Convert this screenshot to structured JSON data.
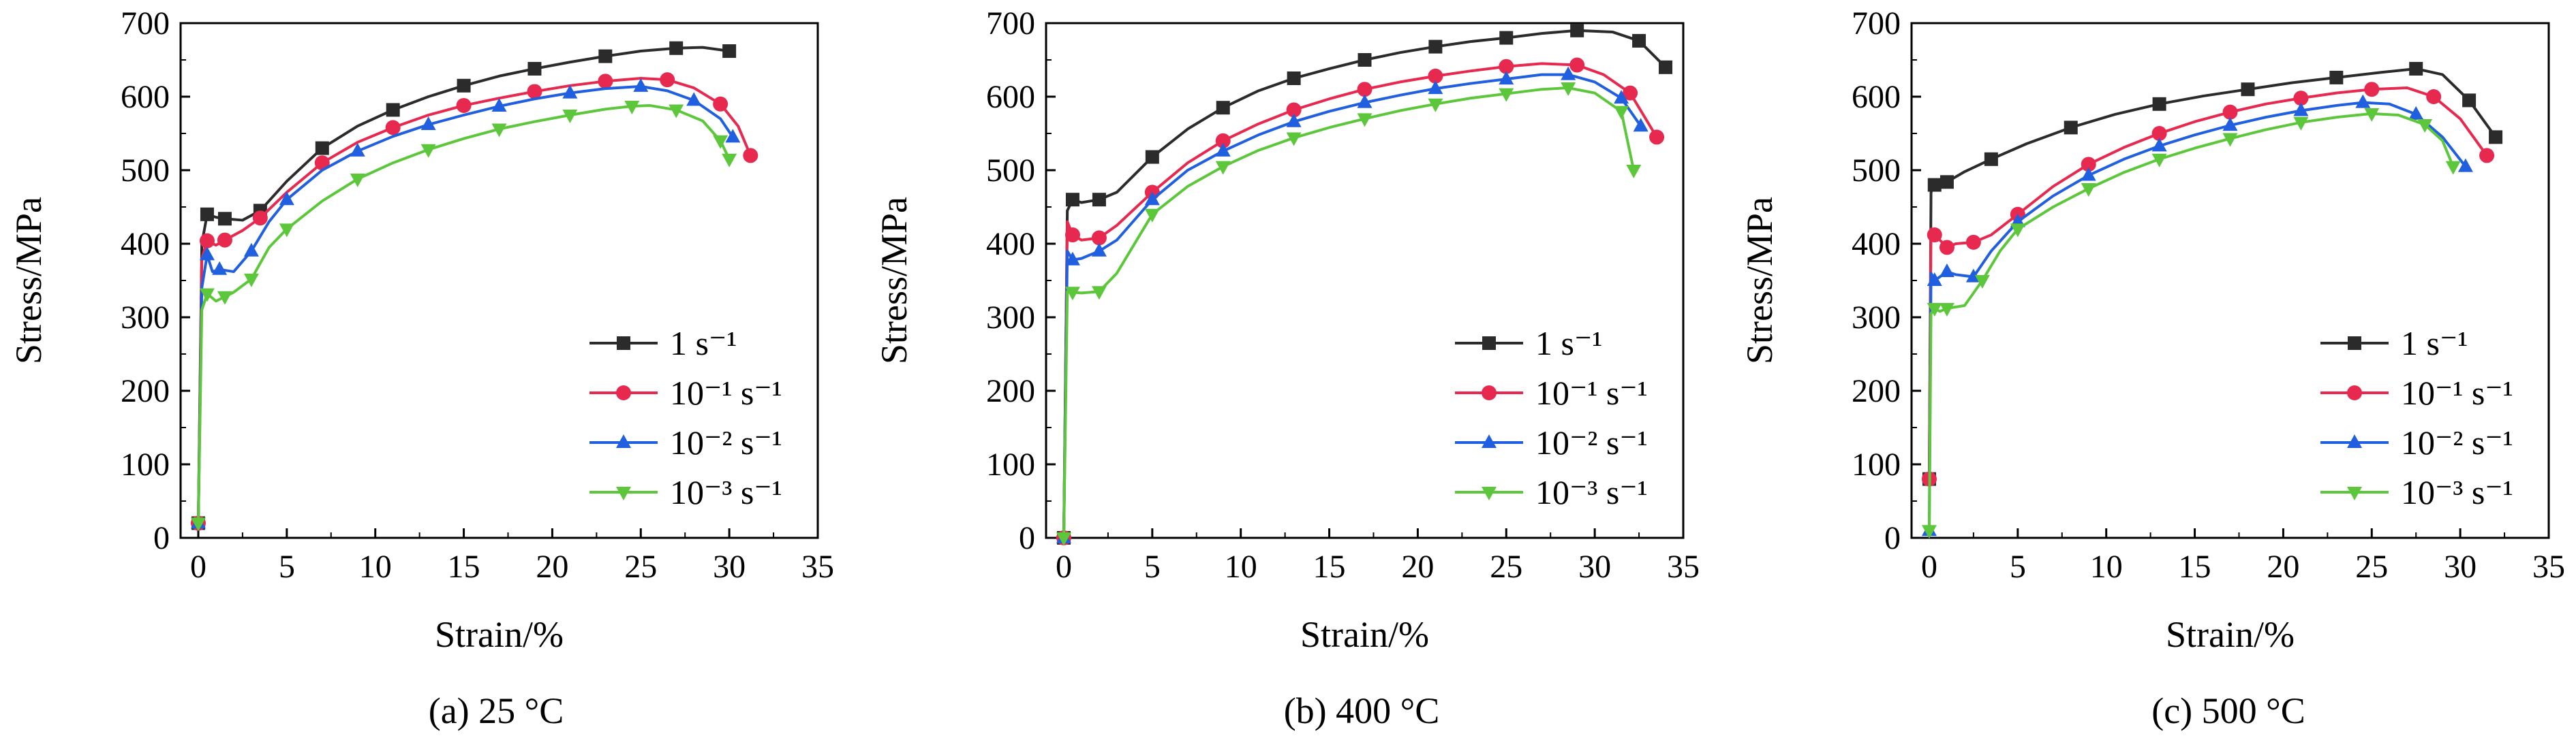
{
  "chart_data": [
    {
      "type": "line",
      "caption": "(a) 25 °C",
      "xlabel": "Strain/%",
      "ylabel": "Stress/MPa",
      "xlim": [
        -1,
        35
      ],
      "ylim": [
        0,
        700
      ],
      "xticks": [
        0,
        5,
        10,
        15,
        20,
        25,
        30,
        35
      ],
      "yticks": [
        0,
        100,
        200,
        300,
        400,
        500,
        600,
        700
      ],
      "legend_position": "bottom-right",
      "series": [
        {
          "name": "1 s⁻¹",
          "color": "#2b2b2b",
          "marker": "square",
          "x": [
            0,
            0.2,
            0.5,
            1.0,
            1.5,
            2.5,
            3.5,
            5.0,
            7.0,
            9.0,
            11.0,
            13.0,
            15.0,
            17.0,
            19.0,
            21.0,
            23.0,
            25.0,
            27.0,
            28.5,
            30.0
          ],
          "y": [
            20,
            400,
            440,
            436,
            434,
            432,
            445,
            485,
            530,
            560,
            582,
            600,
            615,
            628,
            638,
            647,
            655,
            662,
            666,
            667,
            662
          ]
        },
        {
          "name": "10⁻¹ s⁻¹",
          "color": "#e8294f",
          "marker": "circle",
          "x": [
            0,
            0.2,
            0.5,
            1.0,
            1.5,
            2.5,
            3.5,
            5.0,
            7.0,
            9.0,
            11.0,
            13.0,
            15.0,
            17.0,
            19.0,
            21.0,
            23.0,
            25.0,
            26.5,
            28.0,
            29.5,
            30.5,
            31.2
          ],
          "y": [
            20,
            380,
            404,
            398,
            405,
            418,
            435,
            470,
            510,
            538,
            558,
            575,
            588,
            598,
            607,
            615,
            621,
            625,
            623,
            612,
            590,
            560,
            520
          ]
        },
        {
          "name": "10⁻² s⁻¹",
          "color": "#1f5fe0",
          "marker": "triangle-up",
          "x": [
            0,
            0.2,
            0.5,
            0.8,
            1.2,
            2.0,
            3.0,
            4.0,
            5.0,
            7.0,
            9.0,
            11.0,
            13.0,
            15.0,
            17.0,
            19.0,
            21.0,
            23.0,
            25.0,
            26.5,
            28.0,
            29.5,
            30.2
          ],
          "y": [
            20,
            340,
            385,
            362,
            365,
            362,
            390,
            430,
            460,
            500,
            526,
            546,
            562,
            575,
            587,
            597,
            605,
            611,
            614,
            608,
            595,
            570,
            545
          ]
        },
        {
          "name": "10⁻³ s⁻¹",
          "color": "#5cc73a",
          "marker": "triangle-down",
          "x": [
            0,
            0.2,
            0.5,
            1.0,
            1.5,
            2.0,
            3.0,
            4.0,
            5.0,
            7.0,
            9.0,
            11.0,
            13.0,
            15.0,
            17.0,
            19.0,
            21.0,
            23.0,
            24.5,
            25.5,
            27.0,
            28.5,
            29.5,
            30.0
          ],
          "y": [
            20,
            310,
            332,
            322,
            328,
            334,
            352,
            395,
            420,
            458,
            488,
            510,
            528,
            543,
            556,
            566,
            575,
            583,
            587,
            588,
            582,
            567,
            540,
            515
          ]
        }
      ]
    },
    {
      "type": "line",
      "caption": "(b) 400 °C",
      "xlabel": "Strain/%",
      "ylabel": "Stress/MPa",
      "xlim": [
        -1,
        35
      ],
      "ylim": [
        0,
        700
      ],
      "xticks": [
        0,
        5,
        10,
        15,
        20,
        25,
        30,
        35
      ],
      "yticks": [
        0,
        100,
        200,
        300,
        400,
        500,
        600,
        700
      ],
      "legend_position": "bottom-right",
      "series": [
        {
          "name": "1 s⁻¹",
          "color": "#2b2b2b",
          "marker": "square",
          "x": [
            0,
            0.2,
            0.5,
            1.0,
            2.0,
            3.0,
            5.0,
            7.0,
            9.0,
            11.0,
            13.0,
            15.0,
            17.0,
            19.0,
            21.0,
            23.0,
            25.0,
            27.0,
            29.0,
            31.0,
            32.5,
            34.0
          ],
          "y": [
            0,
            445,
            460,
            456,
            460,
            470,
            518,
            556,
            585,
            608,
            625,
            638,
            650,
            660,
            668,
            675,
            680,
            686,
            690,
            688,
            676,
            640
          ]
        },
        {
          "name": "10⁻¹ s⁻¹",
          "color": "#e8294f",
          "marker": "circle",
          "x": [
            0,
            0.2,
            0.5,
            1.0,
            2.0,
            3.0,
            5.0,
            7.0,
            9.0,
            11.0,
            13.0,
            15.0,
            17.0,
            19.0,
            21.0,
            23.0,
            25.0,
            27.0,
            29.0,
            30.5,
            32.0,
            33.5
          ],
          "y": [
            0,
            430,
            412,
            405,
            408,
            425,
            470,
            510,
            540,
            563,
            582,
            597,
            610,
            620,
            628,
            635,
            641,
            645,
            643,
            630,
            605,
            545
          ]
        },
        {
          "name": "10⁻² s⁻¹",
          "color": "#1f5fe0",
          "marker": "triangle-up",
          "x": [
            0,
            0.2,
            0.5,
            1.0,
            2.0,
            3.0,
            5.0,
            7.0,
            9.0,
            11.0,
            13.0,
            15.0,
            17.0,
            19.0,
            21.0,
            23.0,
            25.0,
            27.0,
            28.5,
            30.0,
            31.5,
            32.6
          ],
          "y": [
            0,
            390,
            378,
            380,
            390,
            405,
            460,
            500,
            526,
            548,
            566,
            580,
            592,
            602,
            611,
            618,
            624,
            630,
            630,
            620,
            598,
            560
          ]
        },
        {
          "name": "10⁻³ s⁻¹",
          "color": "#5cc73a",
          "marker": "triangle-down",
          "x": [
            0,
            0.2,
            0.5,
            1.0,
            2.0,
            3.0,
            5.0,
            7.0,
            9.0,
            11.0,
            13.0,
            15.0,
            17.0,
            19.0,
            21.0,
            23.0,
            25.0,
            27.0,
            28.5,
            30.0,
            31.5,
            32.2
          ],
          "y": [
            0,
            335,
            334,
            333,
            335,
            360,
            440,
            478,
            505,
            527,
            544,
            558,
            570,
            581,
            590,
            598,
            604,
            610,
            612,
            605,
            580,
            500
          ]
        }
      ]
    },
    {
      "type": "line",
      "caption": "(c) 500 °C",
      "xlabel": "Strain/%",
      "ylabel": "Stress/MPa",
      "xlim": [
        -1,
        35
      ],
      "ylim": [
        0,
        700
      ],
      "xticks": [
        0,
        5,
        10,
        15,
        20,
        25,
        30,
        35
      ],
      "yticks": [
        0,
        100,
        200,
        300,
        400,
        500,
        600,
        700
      ],
      "legend_position": "bottom-right",
      "series": [
        {
          "name": "1 s⁻¹",
          "color": "#2b2b2b",
          "marker": "square",
          "x": [
            0,
            0.1,
            0.3,
            0.6,
            1.0,
            2.0,
            3.5,
            5.5,
            8.0,
            10.5,
            13.0,
            15.5,
            18.0,
            20.5,
            23.0,
            25.5,
            27.5,
            29.0,
            30.5,
            32.0
          ],
          "y": [
            80,
            470,
            480,
            476,
            484,
            498,
            515,
            536,
            558,
            576,
            590,
            601,
            610,
            619,
            626,
            633,
            638,
            630,
            595,
            545
          ]
        },
        {
          "name": "10⁻¹ s⁻¹",
          "color": "#e8294f",
          "marker": "circle",
          "x": [
            0,
            0.1,
            0.3,
            0.6,
            1.0,
            1.5,
            2.5,
            3.5,
            5.0,
            7.0,
            9.0,
            11.0,
            13.0,
            15.0,
            17.0,
            19.0,
            21.0,
            23.0,
            25.0,
            27.0,
            28.5,
            30.0,
            31.5
          ],
          "y": [
            80,
            420,
            412,
            405,
            395,
            400,
            402,
            412,
            440,
            478,
            508,
            531,
            550,
            566,
            579,
            590,
            598,
            605,
            610,
            612,
            600,
            570,
            520
          ]
        },
        {
          "name": "10⁻² s⁻¹",
          "color": "#1f5fe0",
          "marker": "triangle-up",
          "x": [
            0,
            0.1,
            0.3,
            0.6,
            1.0,
            1.5,
            2.5,
            3.5,
            5.0,
            7.0,
            9.0,
            11.0,
            13.0,
            15.0,
            17.0,
            19.0,
            21.0,
            23.0,
            24.5,
            26.0,
            27.5,
            29.0,
            30.3
          ],
          "y": [
            10,
            360,
            350,
            355,
            362,
            358,
            355,
            390,
            430,
            465,
            493,
            515,
            533,
            548,
            561,
            572,
            581,
            588,
            592,
            590,
            576,
            545,
            505
          ]
        },
        {
          "name": "10⁻³ s⁻¹",
          "color": "#5cc73a",
          "marker": "triangle-down",
          "x": [
            0,
            0.1,
            0.3,
            0.6,
            1.0,
            2.0,
            3.0,
            4.0,
            5.0,
            7.0,
            9.0,
            11.0,
            13.0,
            15.0,
            17.0,
            19.0,
            21.0,
            23.0,
            25.0,
            26.5,
            28.0,
            29.0,
            29.6
          ],
          "y": [
            10,
            305,
            312,
            308,
            312,
            316,
            350,
            390,
            420,
            450,
            475,
            497,
            515,
            530,
            543,
            555,
            565,
            572,
            577,
            575,
            562,
            540,
            505
          ]
        }
      ]
    }
  ]
}
